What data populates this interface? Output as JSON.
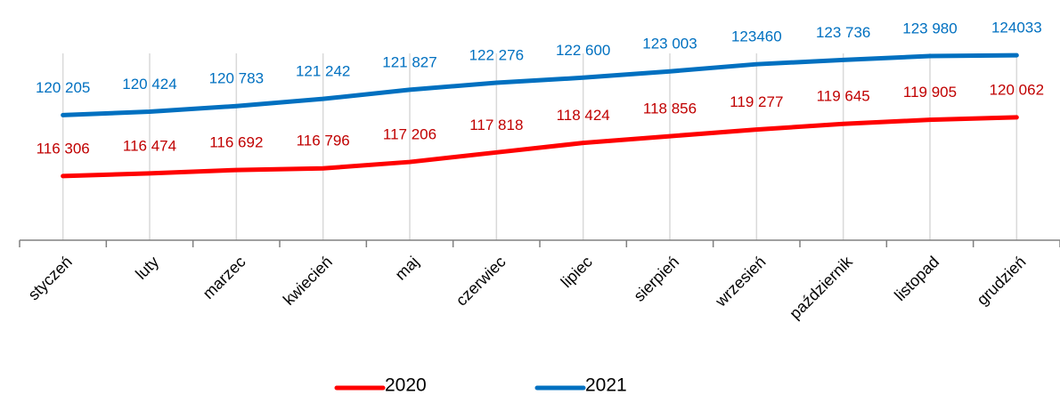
{
  "chart_data": {
    "type": "line",
    "categories": [
      "styczeń",
      "luty",
      "marzec",
      "kwiecień",
      "maj",
      "czerwiec",
      "lipiec",
      "sierpień",
      "wrzesień",
      "październik",
      "listopad",
      "grudzień"
    ],
    "series": [
      {
        "name": "2020",
        "color": "#ff0000",
        "label_color": "#c00000",
        "values": [
          116306,
          116474,
          116692,
          116796,
          117206,
          117818,
          118424,
          118856,
          119277,
          119645,
          119905,
          120062
        ],
        "value_labels": [
          "116 306",
          "116 474",
          "116 692",
          "116 796",
          "117 206",
          "117 818",
          "118 424",
          "118 856",
          "119 277",
          "119 645",
          "119 905",
          "120 062"
        ]
      },
      {
        "name": "2021",
        "color": "#0070c0",
        "label_color": "#0070c0",
        "values": [
          120205,
          120424,
          120783,
          121242,
          121827,
          122276,
          122600,
          123003,
          123460,
          123736,
          123980,
          124033
        ],
        "value_labels": [
          "120 205",
          "120 424",
          "120 783",
          "121 242",
          "121 827",
          "122 276",
          "122 600",
          "123 003",
          "123460",
          "123 736",
          "123 980",
          "124033"
        ]
      }
    ],
    "ylim": [
      112200,
      127000
    ],
    "xgrid": true
  }
}
